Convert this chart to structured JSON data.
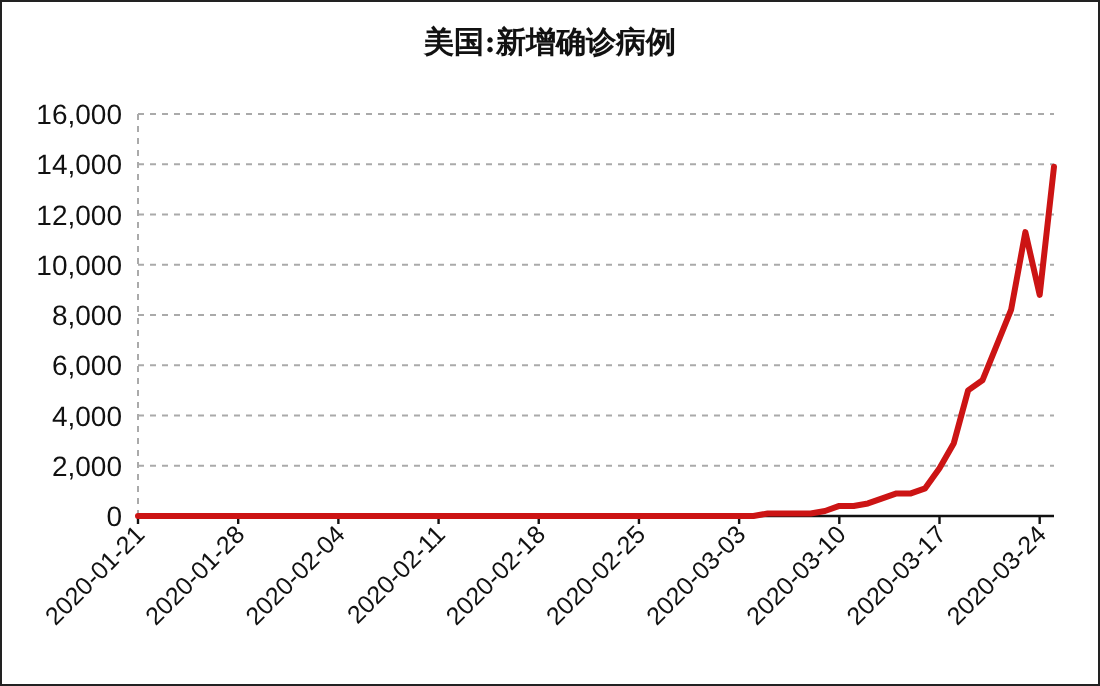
{
  "chart_data": {
    "type": "line",
    "title": "美国:新增确诊病例",
    "x": [
      "2020-01-21",
      "2020-01-22",
      "2020-01-23",
      "2020-01-24",
      "2020-01-25",
      "2020-01-26",
      "2020-01-27",
      "2020-01-28",
      "2020-01-29",
      "2020-01-30",
      "2020-01-31",
      "2020-02-01",
      "2020-02-02",
      "2020-02-03",
      "2020-02-04",
      "2020-02-05",
      "2020-02-06",
      "2020-02-07",
      "2020-02-08",
      "2020-02-09",
      "2020-02-10",
      "2020-02-11",
      "2020-02-12",
      "2020-02-13",
      "2020-02-14",
      "2020-02-15",
      "2020-02-16",
      "2020-02-17",
      "2020-02-18",
      "2020-02-19",
      "2020-02-20",
      "2020-02-21",
      "2020-02-22",
      "2020-02-23",
      "2020-02-24",
      "2020-02-25",
      "2020-02-26",
      "2020-02-27",
      "2020-02-28",
      "2020-02-29",
      "2020-03-01",
      "2020-03-02",
      "2020-03-03",
      "2020-03-04",
      "2020-03-05",
      "2020-03-06",
      "2020-03-07",
      "2020-03-08",
      "2020-03-09",
      "2020-03-10",
      "2020-03-11",
      "2020-03-12",
      "2020-03-13",
      "2020-03-14",
      "2020-03-15",
      "2020-03-16",
      "2020-03-17",
      "2020-03-18",
      "2020-03-19",
      "2020-03-20",
      "2020-03-21",
      "2020-03-22",
      "2020-03-23",
      "2020-03-24",
      "2020-03-25"
    ],
    "series": [
      {
        "color": "#cc1414",
        "values": [
          0,
          0,
          0,
          0,
          0,
          0,
          0,
          0,
          0,
          0,
          0,
          0,
          0,
          0,
          0,
          0,
          0,
          0,
          0,
          0,
          0,
          0,
          0,
          0,
          0,
          0,
          0,
          0,
          0,
          0,
          0,
          0,
          0,
          0,
          0,
          0,
          0,
          0,
          0,
          0,
          0,
          0,
          0,
          0,
          100,
          100,
          100,
          100,
          200,
          400,
          400,
          500,
          700,
          900,
          900,
          1100,
          1900,
          2900,
          5000,
          5400,
          6800,
          8200,
          11300,
          8800,
          13900
        ]
      }
    ],
    "xlim": [
      "2020-01-21",
      "2020-03-25"
    ],
    "xticks": [
      "2020-01-21",
      "2020-01-28",
      "2020-02-04",
      "2020-02-11",
      "2020-02-18",
      "2020-02-25",
      "2020-03-03",
      "2020-03-10",
      "2020-03-17",
      "2020-03-24"
    ],
    "ylim": [
      0,
      16000
    ],
    "yticks": [
      {
        "value": 0,
        "label": "0"
      },
      {
        "value": 2000,
        "label": "2,000"
      },
      {
        "value": 4000,
        "label": "4,000"
      },
      {
        "value": 6000,
        "label": "6,000"
      },
      {
        "value": 8000,
        "label": "8,000"
      },
      {
        "value": 10000,
        "label": "10,000"
      },
      {
        "value": 12000,
        "label": "12,000"
      },
      {
        "value": 14000,
        "label": "14,000"
      },
      {
        "value": 16000,
        "label": "16,000"
      }
    ],
    "grid": "y",
    "line_style": "solid"
  }
}
